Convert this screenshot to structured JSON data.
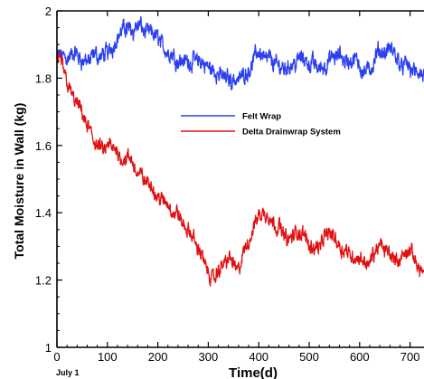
{
  "chart_data": {
    "type": "line",
    "title": "",
    "xlabel": "Time(d)",
    "ylabel": "Total Moisture in Wall (kg)",
    "x_start_label": "July 1",
    "xlim": [
      0,
      730
    ],
    "ylim": [
      1,
      2
    ],
    "x_ticks": [
      0,
      100,
      200,
      300,
      400,
      500,
      600,
      700
    ],
    "x_tick_labels": [
      "0",
      "100",
      "200",
      "300",
      "400",
      "500",
      "600",
      "700"
    ],
    "y_ticks": [
      1,
      1.2,
      1.4,
      1.6,
      1.8,
      2
    ],
    "y_tick_labels": [
      "1",
      "1.2",
      "1.4",
      "1.6",
      "1.8",
      "2"
    ],
    "grid": false,
    "legend_position": "center",
    "series": [
      {
        "name": "Felt Wrap",
        "color": "#2b3ff0",
        "x": [
          0,
          20,
          40,
          60,
          80,
          100,
          120,
          140,
          160,
          180,
          200,
          220,
          240,
          260,
          280,
          300,
          320,
          340,
          360,
          380,
          400,
          420,
          440,
          460,
          480,
          500,
          520,
          540,
          560,
          580,
          600,
          620,
          640,
          660,
          680,
          700,
          720,
          730
        ],
        "y": [
          1.86,
          1.87,
          1.86,
          1.85,
          1.86,
          1.87,
          1.93,
          1.95,
          1.96,
          1.93,
          1.92,
          1.88,
          1.86,
          1.85,
          1.85,
          1.83,
          1.81,
          1.8,
          1.8,
          1.83,
          1.88,
          1.86,
          1.83,
          1.84,
          1.86,
          1.85,
          1.83,
          1.85,
          1.86,
          1.85,
          1.84,
          1.82,
          1.87,
          1.88,
          1.85,
          1.83,
          1.8,
          1.79
        ]
      },
      {
        "name": "Delta Drainwrap System",
        "color": "#e01010",
        "x": [
          0,
          10,
          20,
          30,
          40,
          50,
          60,
          70,
          80,
          90,
          100,
          120,
          140,
          160,
          180,
          200,
          220,
          240,
          260,
          280,
          300,
          310,
          320,
          340,
          360,
          380,
          400,
          420,
          440,
          460,
          480,
          500,
          520,
          540,
          560,
          580,
          600,
          620,
          640,
          660,
          680,
          700,
          720,
          730
        ],
        "y": [
          1.86,
          1.84,
          1.8,
          1.75,
          1.72,
          1.69,
          1.65,
          1.63,
          1.6,
          1.58,
          1.59,
          1.58,
          1.56,
          1.52,
          1.49,
          1.45,
          1.42,
          1.39,
          1.34,
          1.3,
          1.22,
          1.2,
          1.22,
          1.27,
          1.23,
          1.31,
          1.4,
          1.39,
          1.36,
          1.32,
          1.34,
          1.31,
          1.3,
          1.35,
          1.31,
          1.28,
          1.26,
          1.25,
          1.3,
          1.28,
          1.26,
          1.28,
          1.24,
          1.22
        ]
      }
    ]
  }
}
